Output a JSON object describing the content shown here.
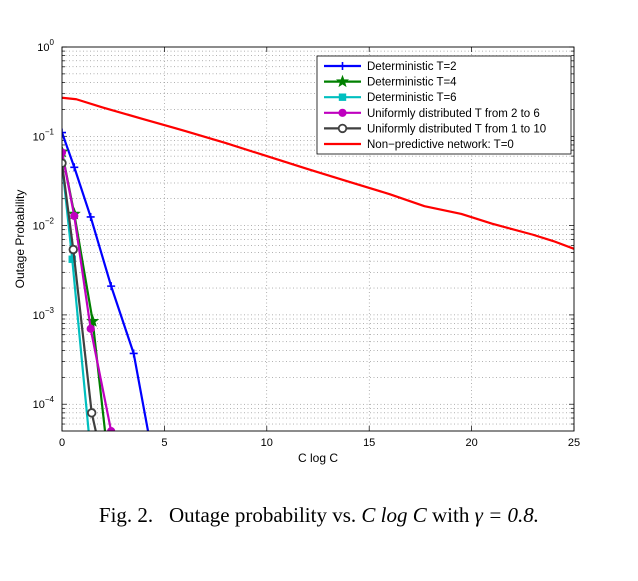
{
  "chart_data": {
    "type": "line",
    "xlabel": "C log C",
    "ylabel": "Outage Probability",
    "xlim": [
      0,
      25
    ],
    "ylim_log10": [
      -4.3,
      0
    ],
    "yscale": "log",
    "grid": true,
    "legend_position": "top-right",
    "x_ticks": [
      {
        "value": 0,
        "label": "0"
      },
      {
        "value": 5,
        "label": "5"
      },
      {
        "value": 10,
        "label": "10"
      },
      {
        "value": 15,
        "label": "15"
      },
      {
        "value": 20,
        "label": "20"
      },
      {
        "value": 25,
        "label": "25"
      }
    ],
    "y_ticks": [
      {
        "exp": 0,
        "base": "10",
        "power": "0"
      },
      {
        "exp": -1,
        "base": "10",
        "power": "−1"
      },
      {
        "exp": -2,
        "base": "10",
        "power": "−2"
      },
      {
        "exp": -3,
        "base": "10",
        "power": "−3"
      },
      {
        "exp": -4,
        "base": "10",
        "power": "−4"
      }
    ],
    "series": [
      {
        "name": "Deterministic T=2",
        "color": "#0000ff",
        "marker": "plus",
        "x": [
          0,
          0.6,
          1.4,
          2.4,
          3.5,
          4.2
        ],
        "y": [
          0.11,
          0.045,
          0.0125,
          0.0021,
          0.00037,
          5e-05
        ],
        "marker_points": 5
      },
      {
        "name": "Deterministic T=4",
        "color": "#008000",
        "marker": "star",
        "x": [
          0,
          0.6,
          1.5,
          2.1
        ],
        "y": [
          0.067,
          0.0135,
          0.00085,
          5e-05
        ],
        "marker_points": 3
      },
      {
        "name": "Deterministic T=6",
        "color": "#00bfbf",
        "marker": "square",
        "x": [
          0,
          0.5,
          1.3
        ],
        "y": [
          0.05,
          0.0042,
          5e-05
        ],
        "marker_points": 2
      },
      {
        "name": "Uniformly distributed T from 2 to 6",
        "color": "#bf00bf",
        "marker": "circle-filled",
        "x": [
          0,
          0.6,
          1.4,
          2.4
        ],
        "y": [
          0.066,
          0.0128,
          0.0007,
          5e-05
        ],
        "marker_points": 4
      },
      {
        "name": "Uniformly distributed T from 1 to 10",
        "color": "#404040",
        "marker": "circle-open",
        "x": [
          0,
          0.55,
          1.45,
          1.65
        ],
        "y": [
          0.05,
          0.0054,
          8e-05,
          5e-05
        ],
        "marker_points": 3
      },
      {
        "name": "Non-predictive network: T=0",
        "color": "#ff0000",
        "marker": "none",
        "x": [
          0,
          0.7,
          2,
          4,
          6,
          8,
          10,
          12,
          14,
          16,
          17.7,
          19.5,
          21,
          23,
          24,
          25
        ],
        "y": [
          0.27,
          0.26,
          0.21,
          0.155,
          0.115,
          0.084,
          0.06,
          0.043,
          0.031,
          0.0225,
          0.0165,
          0.0135,
          0.0105,
          0.0079,
          0.0067,
          0.0055
        ]
      }
    ],
    "legend_labels": [
      "Deterministic T=2",
      "Deterministic T=4",
      "Deterministic T=6",
      "Uniformly distributed T from 2 to 6",
      "Uniformly distributed T from 1 to 10",
      "Non−predictive network: T=0"
    ]
  },
  "caption": {
    "prefix": "Fig. 2.",
    "text_before": "Outage probability vs.",
    "math_expr": "C log C",
    "text_mid": "with",
    "gamma_expr": "γ = 0.8."
  }
}
